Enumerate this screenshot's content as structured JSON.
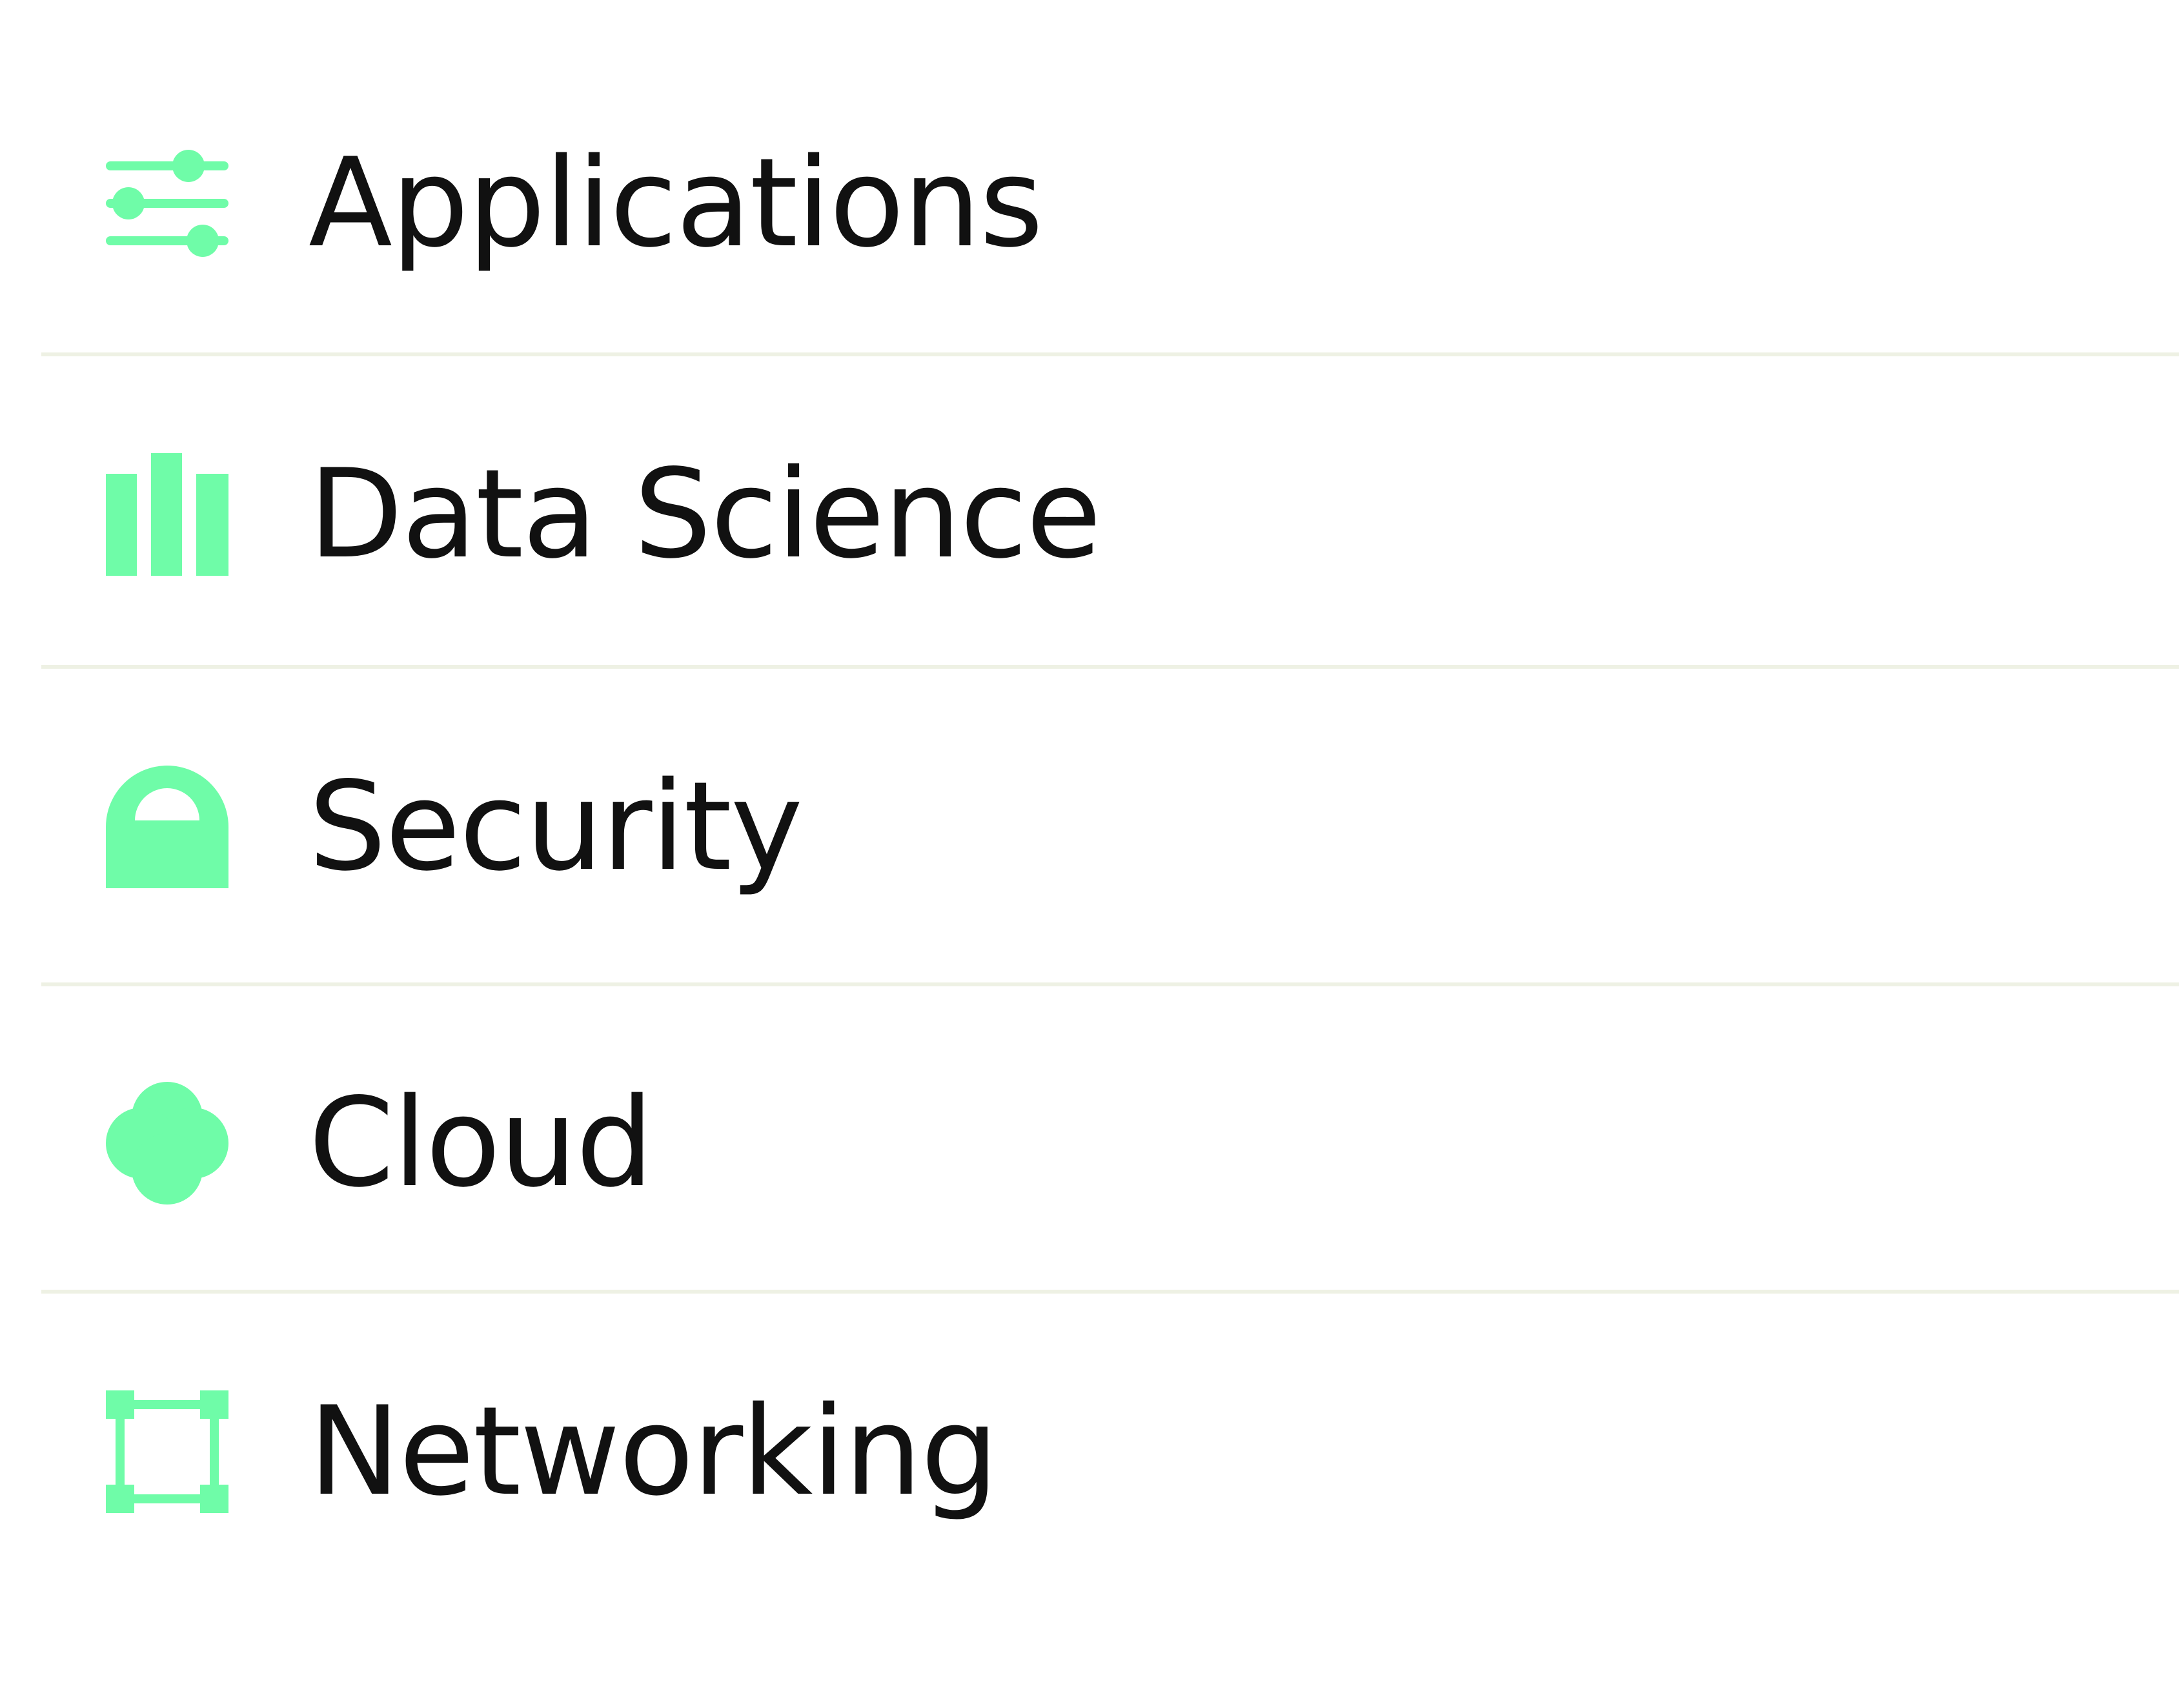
{
  "accent_color": "#6ffca8",
  "text_color": "#111111",
  "divider_color": "#eef1e4",
  "menu": {
    "items": [
      {
        "label": "Applications",
        "icon": "sliders-icon"
      },
      {
        "label": "Data Science",
        "icon": "bar-chart-icon"
      },
      {
        "label": "Security",
        "icon": "lock-icon"
      },
      {
        "label": "Cloud",
        "icon": "cloud-icon"
      },
      {
        "label": "Networking",
        "icon": "network-icon"
      }
    ]
  }
}
